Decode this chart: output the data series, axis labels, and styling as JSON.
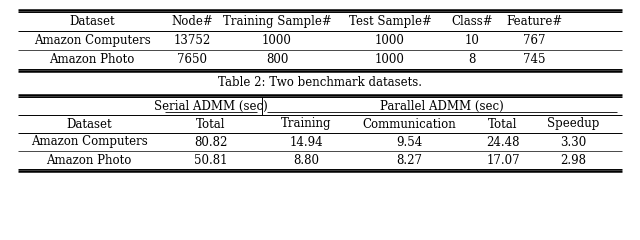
{
  "table2_caption": "Table 2: Two benchmark datasets.",
  "table2_headers": [
    "Dataset",
    "Node#",
    "Training Sample#",
    "Test Sample#",
    "Class#",
    "Feature#"
  ],
  "table2_rows": [
    [
      "Amazon Computers",
      "13752",
      "1000",
      "1000",
      "10",
      "767"
    ],
    [
      "Amazon Photo",
      "7650",
      "800",
      "1000",
      "8",
      "745"
    ]
  ],
  "table3_top_headers": [
    "",
    "Serial ADMM (sec)",
    "Parallel ADMM (sec)"
  ],
  "table3_sub_headers": [
    "Dataset",
    "Total",
    "Training",
    "Communication",
    "Total",
    "Speedup"
  ],
  "table3_rows": [
    [
      "Amazon Computers",
      "80.82",
      "14.94",
      "9.54",
      "24.48",
      "3.30"
    ],
    [
      "Amazon Photo",
      "50.81",
      "8.80",
      "8.27",
      "17.07",
      "2.98"
    ]
  ],
  "background_color": "#ffffff",
  "font_family": "DejaVu Serif",
  "fontsize": 8.5
}
